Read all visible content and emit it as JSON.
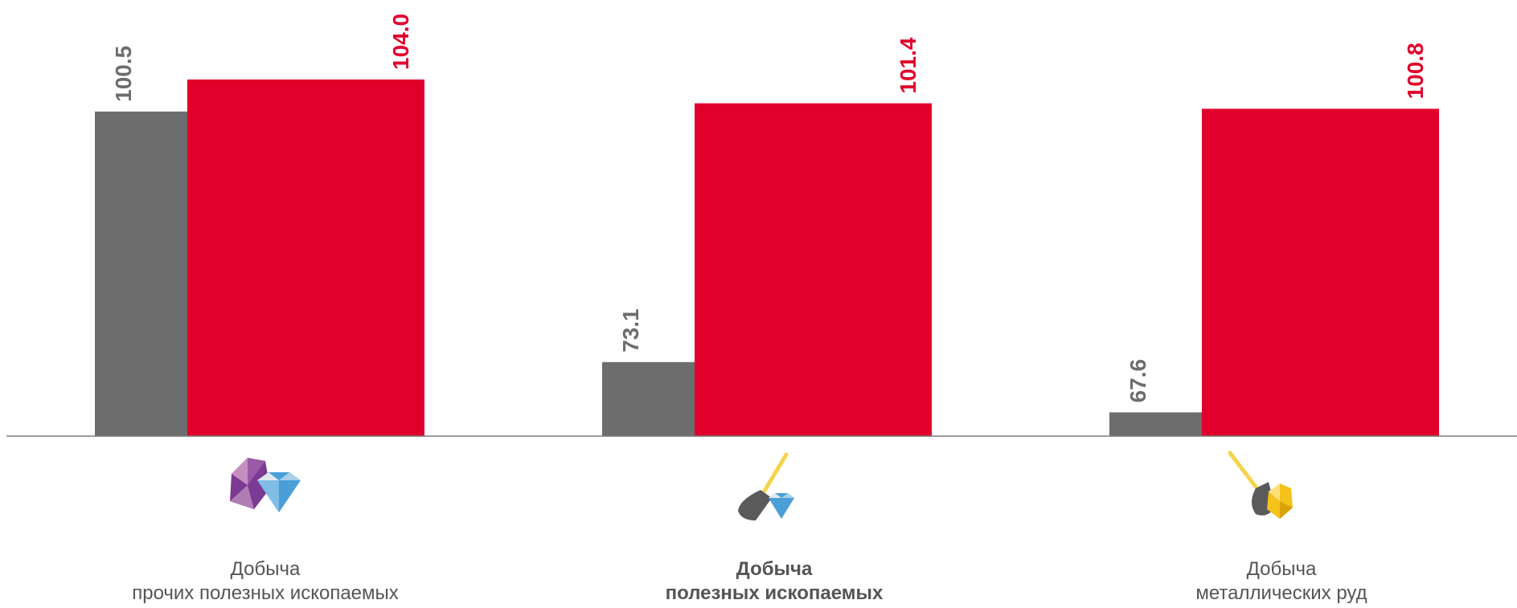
{
  "colors": {
    "series_a": "#6d6d6d",
    "series_b": "#e1002c",
    "axis": "#7a7a7a"
  },
  "chart_data": {
    "type": "bar",
    "title": "",
    "xlabel": "",
    "ylabel": "",
    "ylim": [
      65,
      104
    ],
    "grid": false,
    "legend": "none",
    "categories": [
      {
        "line1": "Добыча",
        "line2": "прочих полезных ископаемых",
        "bold": false,
        "icon": "gems-icon"
      },
      {
        "line1": "Добыча",
        "line2": "полезных ископаемых",
        "bold": true,
        "icon": "shovel-diamond-icon"
      },
      {
        "line1": "Добыча",
        "line2": "металлических руд",
        "bold": false,
        "icon": "shovel-gold-ore-icon"
      }
    ],
    "series": [
      {
        "values": [
          100.5,
          73.1,
          67.6
        ],
        "labels": [
          "100.5",
          "73.1",
          "67.6"
        ],
        "color": "#6d6d6d"
      },
      {
        "values": [
          104.0,
          101.4,
          100.8
        ],
        "labels": [
          "104.0",
          "101.4",
          "100.8"
        ],
        "color": "#e1002c"
      }
    ]
  }
}
